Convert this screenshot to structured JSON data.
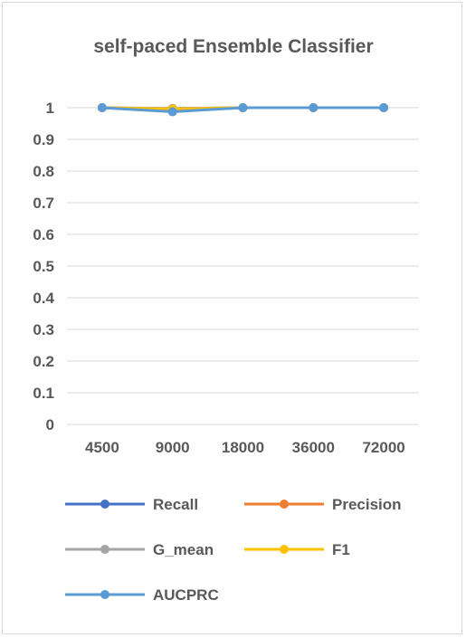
{
  "chart_data": {
    "type": "line",
    "title": "self-paced Ensemble Classifier",
    "xlabel": "",
    "ylabel": "",
    "categories": [
      "4500",
      "9000",
      "18000",
      "36000",
      "72000"
    ],
    "ylim": [
      0,
      1
    ],
    "yticks": [
      "0",
      "0.1",
      "0.2",
      "0.3",
      "0.4",
      "0.5",
      "0.6",
      "0.7",
      "0.8",
      "0.9",
      "1"
    ],
    "grid": true,
    "legend_position": "bottom",
    "series": [
      {
        "name": "Recall",
        "color": "#4472c4",
        "values": [
          1.0,
          0.99,
          1.0,
          1.0,
          1.0
        ]
      },
      {
        "name": "Precision",
        "color": "#ed7d31",
        "values": [
          1.0,
          0.997,
          1.0,
          1.0,
          1.0
        ]
      },
      {
        "name": "G_mean",
        "color": "#a5a5a5",
        "values": [
          1.0,
          0.998,
          1.0,
          1.0,
          1.0
        ]
      },
      {
        "name": "F1",
        "color": "#ffc000",
        "values": [
          1.0,
          0.996,
          1.0,
          1.0,
          1.0
        ]
      },
      {
        "name": "AUCPRC",
        "color": "#5b9bd5",
        "values": [
          1.0,
          0.987,
          1.0,
          1.0,
          1.0
        ]
      }
    ]
  }
}
